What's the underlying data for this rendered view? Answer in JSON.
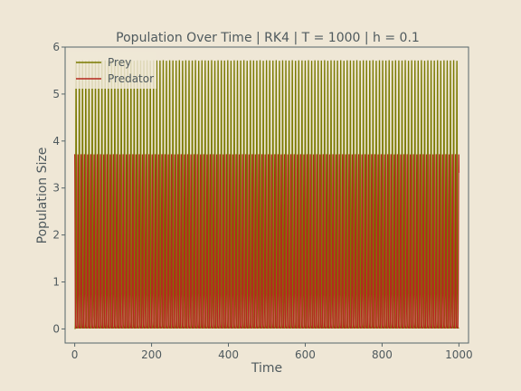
{
  "chart_data": {
    "type": "line",
    "title": "Population Over Time | RK4 | T = 1000 | h = 0.1",
    "xlabel": "Time",
    "ylabel": "Population Size",
    "xlim": [
      -25,
      1025
    ],
    "ylim": [
      -0.3,
      6
    ],
    "xticks": [
      0,
      200,
      400,
      600,
      800,
      1000
    ],
    "yticks": [
      0,
      1,
      2,
      3,
      4,
      5,
      6
    ],
    "grid": false,
    "legend_position": "upper-left",
    "t_end": 1000,
    "period": 8.4,
    "series": [
      {
        "name": "Prey",
        "color": "#7a7a00",
        "min": 0.02,
        "max": 5.72,
        "start_value": 0.0,
        "end_value": 5.5
      },
      {
        "name": "Predator",
        "color": "#b5281e",
        "min": 0.02,
        "max": 3.72,
        "start_value": 3.72,
        "end_value": 0.92
      }
    ]
  },
  "colors": {
    "background": "#efe7d6",
    "axes_edge": "#566569",
    "text": "#4f5a5e"
  }
}
